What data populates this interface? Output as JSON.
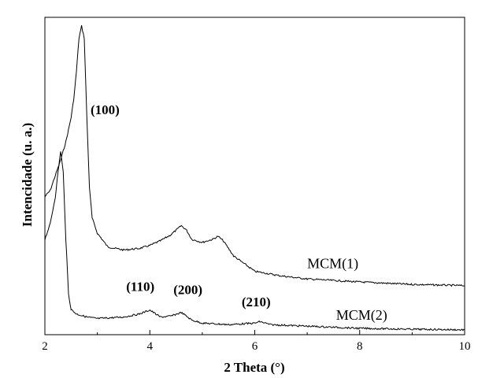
{
  "chart_data": {
    "type": "line",
    "title": "",
    "xlabel": "2 Theta (°)",
    "ylabel": "Intencidade (u. a.)",
    "xlim": [
      2,
      10
    ],
    "ylim": [
      0,
      1
    ],
    "x_ticks": [
      2,
      4,
      6,
      8,
      10
    ],
    "y_tick_labels": false,
    "grid": false,
    "legend": "none",
    "series": [
      {
        "name": "MCM(1)",
        "color": "#000000",
        "points": [
          [
            2.0,
            0.44
          ],
          [
            2.1,
            0.46
          ],
          [
            2.2,
            0.51
          ],
          [
            2.3,
            0.56
          ],
          [
            2.4,
            0.62
          ],
          [
            2.5,
            0.7
          ],
          [
            2.55,
            0.76
          ],
          [
            2.6,
            0.85
          ],
          [
            2.65,
            0.96
          ],
          [
            2.7,
            1.0
          ],
          [
            2.75,
            0.96
          ],
          [
            2.8,
            0.7
          ],
          [
            2.85,
            0.47
          ],
          [
            2.9,
            0.37
          ],
          [
            3.0,
            0.32
          ],
          [
            3.2,
            0.275
          ],
          [
            3.5,
            0.265
          ],
          [
            3.8,
            0.27
          ],
          [
            4.0,
            0.28
          ],
          [
            4.2,
            0.295
          ],
          [
            4.4,
            0.315
          ],
          [
            4.5,
            0.33
          ],
          [
            4.6,
            0.345
          ],
          [
            4.7,
            0.33
          ],
          [
            4.8,
            0.3
          ],
          [
            5.0,
            0.29
          ],
          [
            5.2,
            0.3
          ],
          [
            5.3,
            0.31
          ],
          [
            5.4,
            0.295
          ],
          [
            5.6,
            0.245
          ],
          [
            6.0,
            0.195
          ],
          [
            6.5,
            0.18
          ],
          [
            7.0,
            0.17
          ],
          [
            8.0,
            0.16
          ],
          [
            9.0,
            0.152
          ],
          [
            10.0,
            0.148
          ]
        ]
      },
      {
        "name": "MCM(2)",
        "color": "#000000",
        "points": [
          [
            2.0,
            0.3
          ],
          [
            2.1,
            0.35
          ],
          [
            2.2,
            0.44
          ],
          [
            2.25,
            0.52
          ],
          [
            2.3,
            0.59
          ],
          [
            2.35,
            0.52
          ],
          [
            2.4,
            0.3
          ],
          [
            2.45,
            0.12
          ],
          [
            2.5,
            0.07
          ],
          [
            2.6,
            0.055
          ],
          [
            2.8,
            0.045
          ],
          [
            3.0,
            0.04
          ],
          [
            3.5,
            0.045
          ],
          [
            3.8,
            0.055
          ],
          [
            4.0,
            0.068
          ],
          [
            4.2,
            0.045
          ],
          [
            4.4,
            0.048
          ],
          [
            4.6,
            0.06
          ],
          [
            4.8,
            0.035
          ],
          [
            5.0,
            0.025
          ],
          [
            5.5,
            0.02
          ],
          [
            6.0,
            0.025
          ],
          [
            6.1,
            0.03
          ],
          [
            6.3,
            0.02
          ],
          [
            7.0,
            0.015
          ],
          [
            8.0,
            0.008
          ],
          [
            9.0,
            0.005
          ],
          [
            10.0,
            0.003
          ]
        ]
      }
    ],
    "annotations": [
      {
        "text": "(100)",
        "x": 2.87,
        "y": 0.71
      },
      {
        "text": "(110)",
        "x": 3.55,
        "y": 0.13
      },
      {
        "text": "(200)",
        "x": 4.45,
        "y": 0.12
      },
      {
        "text": "(210)",
        "x": 5.75,
        "y": 0.08
      }
    ],
    "series_labels": [
      {
        "text": "MCM(1)",
        "x": 7.0,
        "y": 0.205
      },
      {
        "text": "MCM(2)",
        "x": 7.55,
        "y": 0.036
      }
    ]
  }
}
